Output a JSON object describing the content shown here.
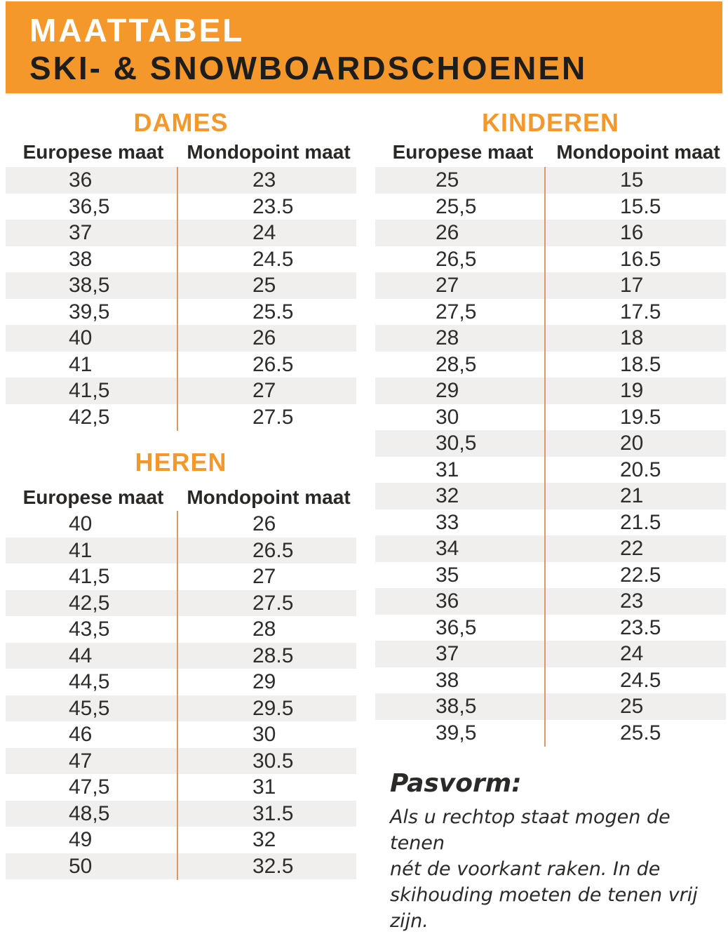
{
  "banner": {
    "line1": "MAATTABEL",
    "line2": "SKI- & SNOWBOARDSCHOENEN"
  },
  "colors": {
    "accent_orange": "#F4982B",
    "banner_title": "#FFFFFF",
    "banner_subtitle": "#1D1D1B",
    "row_stripe_gray": "#F0EFED",
    "column_divider_orange": "#D99A5B",
    "text_dark": "#2E2D2B"
  },
  "tables": [
    {
      "title": "DAMES",
      "columns": [
        "Europese maat",
        "Mondopoint maat"
      ],
      "shaded_first": true,
      "rows": [
        [
          "36",
          "23"
        ],
        [
          "36,5",
          "23.5"
        ],
        [
          "37",
          "24"
        ],
        [
          "38",
          "24.5"
        ],
        [
          "38,5",
          "25"
        ],
        [
          "39,5",
          "25.5"
        ],
        [
          "40",
          "26"
        ],
        [
          "41",
          "26.5"
        ],
        [
          "41,5",
          "27"
        ],
        [
          "42,5",
          "27.5"
        ]
      ]
    },
    {
      "title": "HEREN",
      "columns": [
        "Europese maat",
        "Mondopoint maat"
      ],
      "shaded_first": false,
      "rows": [
        [
          "40",
          "26"
        ],
        [
          "41",
          "26.5"
        ],
        [
          "41,5",
          "27"
        ],
        [
          "42,5",
          "27.5"
        ],
        [
          "43,5",
          "28"
        ],
        [
          "44",
          "28.5"
        ],
        [
          "44,5",
          "29"
        ],
        [
          "45,5",
          "29.5"
        ],
        [
          "46",
          "30"
        ],
        [
          "47",
          "30.5"
        ],
        [
          "47,5",
          "31"
        ],
        [
          "48,5",
          "31.5"
        ],
        [
          "49",
          "32"
        ],
        [
          "50",
          "32.5"
        ]
      ]
    },
    {
      "title": "KINDEREN",
      "columns": [
        "Europese maat",
        "Mondopoint maat"
      ],
      "shaded_first": true,
      "rows": [
        [
          "25",
          "15"
        ],
        [
          "25,5",
          "15.5"
        ],
        [
          "26",
          "16"
        ],
        [
          "26,5",
          "16.5"
        ],
        [
          "27",
          "17"
        ],
        [
          "27,5",
          "17.5"
        ],
        [
          "28",
          "18"
        ],
        [
          "28,5",
          "18.5"
        ],
        [
          "29",
          "19"
        ],
        [
          "30",
          "19.5"
        ],
        [
          "30,5",
          "20"
        ],
        [
          "31",
          "20.5"
        ],
        [
          "32",
          "21"
        ],
        [
          "33",
          "21.5"
        ],
        [
          "34",
          "22"
        ],
        [
          "35",
          "22.5"
        ],
        [
          "36",
          "23"
        ],
        [
          "36,5",
          "23.5"
        ],
        [
          "37",
          "24"
        ],
        [
          "38",
          "24.5"
        ],
        [
          "38,5",
          "25"
        ],
        [
          "39,5",
          "25.5"
        ]
      ]
    }
  ],
  "note": {
    "title": "Pasvorm:",
    "lines": [
      "Als u rechtop staat mogen de tenen",
      "nét de voorkant raken. In de",
      "skihouding moeten de tenen vrij zijn."
    ]
  }
}
